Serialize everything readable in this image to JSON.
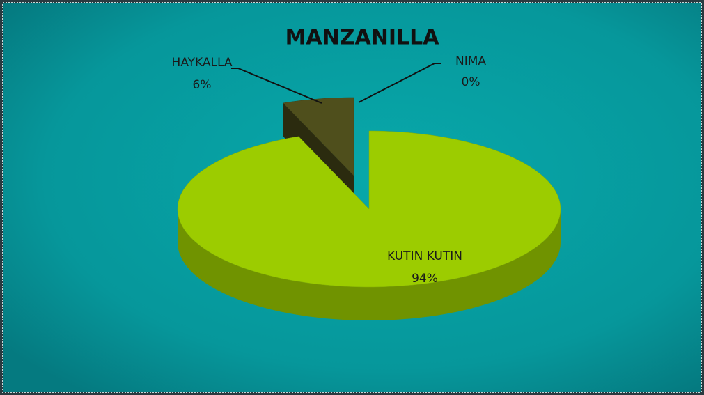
{
  "chart_data": {
    "type": "pie",
    "title": "MANZANILLA",
    "categories": [
      "KUTIN KUTIN",
      "HAYKALLA",
      "NIMA"
    ],
    "values": [
      94,
      6,
      0
    ],
    "value_labels": [
      "94%",
      "6%",
      "0%"
    ],
    "colors": [
      "#9ccc00",
      "#4f4f1c",
      "#7a8a2a"
    ]
  }
}
